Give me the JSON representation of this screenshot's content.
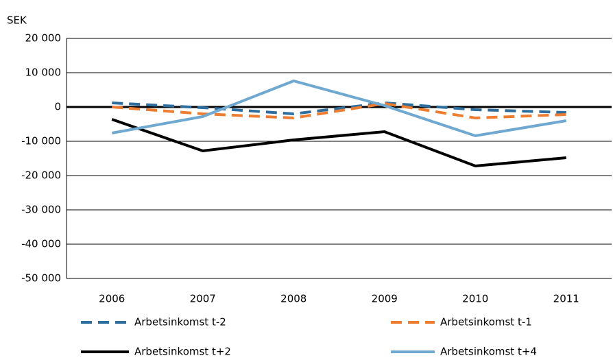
{
  "chart_data": {
    "type": "line",
    "y_label": "SEK",
    "categories": [
      "2006",
      "2007",
      "2008",
      "2009",
      "2010",
      "2011"
    ],
    "series": [
      {
        "name": "Arbetsinkomst t-2",
        "color": "#2e6e9e",
        "dashed": true,
        "values": [
          1200,
          -200,
          -2000,
          1200,
          -800,
          -1600
        ]
      },
      {
        "name": "Arbetsinkomst t-1",
        "color": "#ed7d31",
        "dashed": true,
        "values": [
          0,
          -2000,
          -3200,
          1000,
          -3200,
          -2200
        ]
      },
      {
        "name": "Arbetsinkomst t+2",
        "color": "#000000",
        "dashed": false,
        "values": [
          -3600,
          -12800,
          -9600,
          -7200,
          -17200,
          -14800
        ]
      },
      {
        "name": "Arbetsinkomst t+4",
        "color": "#6fa8d0",
        "dashed": false,
        "values": [
          -7600,
          -2800,
          7600,
          400,
          -8400,
          -4000
        ]
      }
    ],
    "ylim": [
      -50000,
      20000
    ],
    "yticks": [
      {
        "value": -50000,
        "label": "-50 000"
      },
      {
        "value": -40000,
        "label": "-40 000"
      },
      {
        "value": -30000,
        "label": "-30 000"
      },
      {
        "value": -20000,
        "label": "-20 000"
      },
      {
        "value": -10000,
        "label": "-10 000"
      },
      0,
      {
        "value": 10000,
        "label": "10 000"
      },
      {
        "value": 20000,
        "label": "20 000"
      }
    ],
    "grid": true,
    "legend": "bottom"
  }
}
